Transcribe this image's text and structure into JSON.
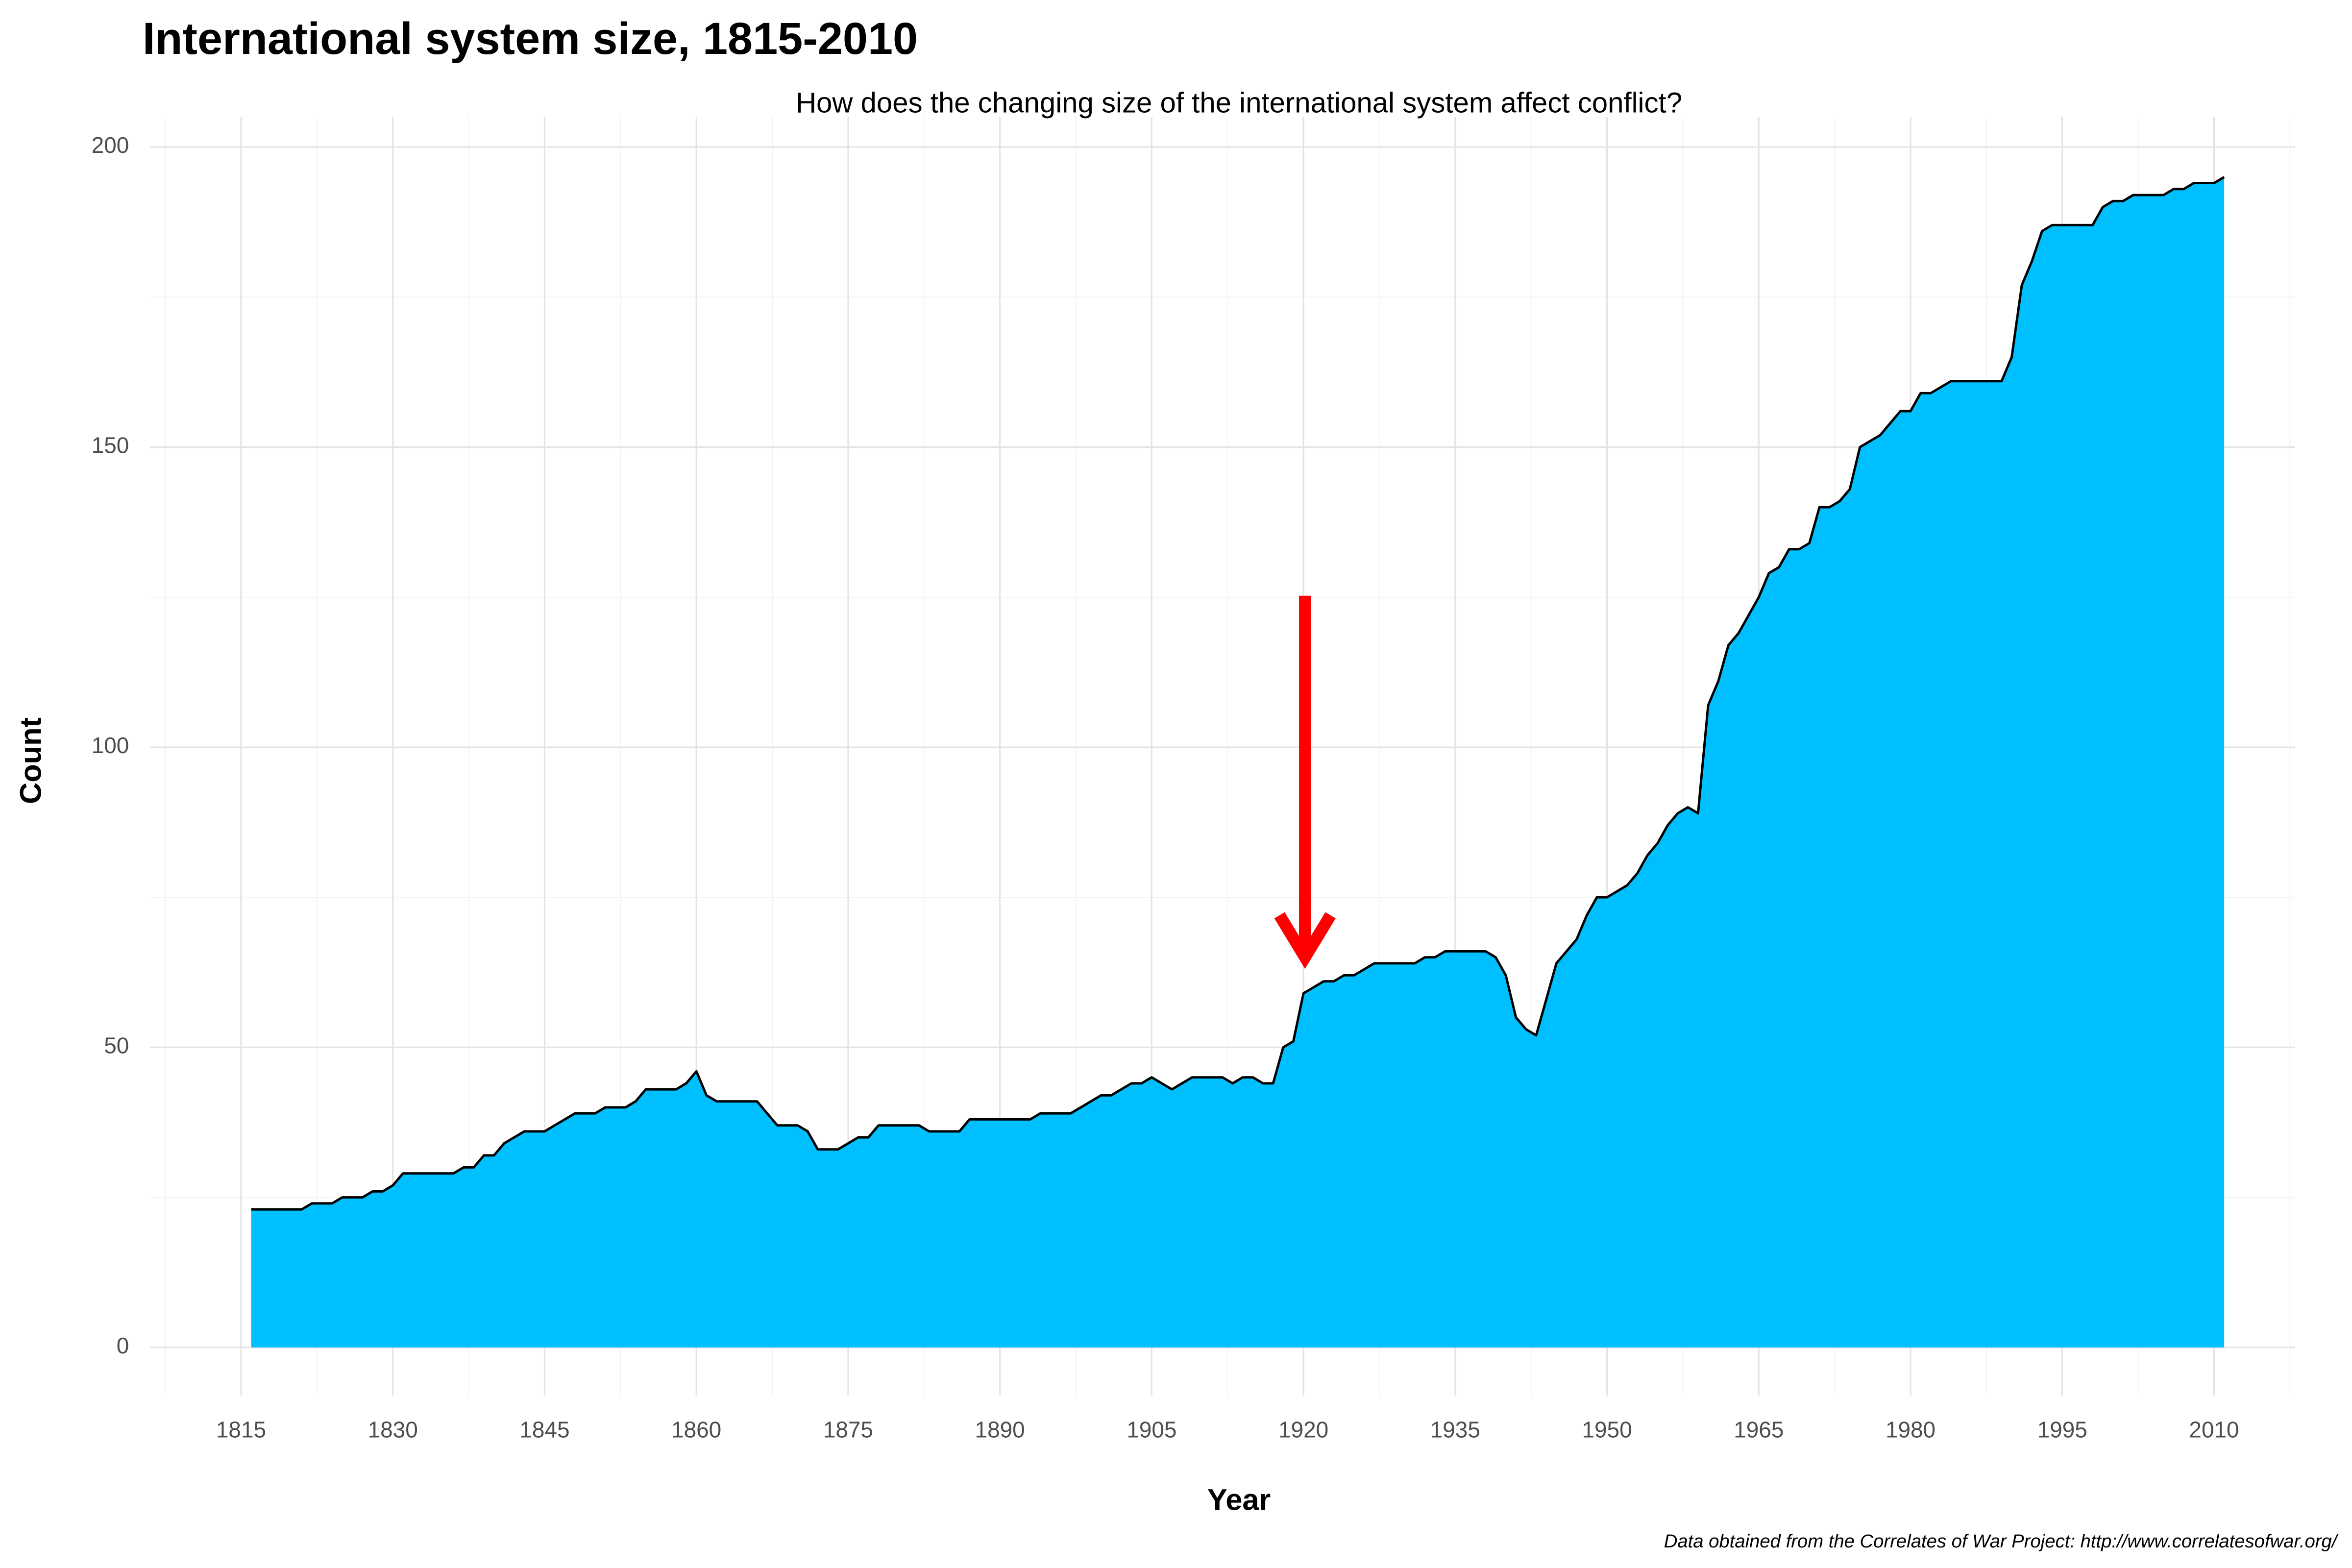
{
  "chart_data": {
    "type": "area",
    "title": "International system size, 1815-2010",
    "subtitle": "How does the changing size of the international system affect conflict?",
    "xlabel": "Year",
    "ylabel": "Count",
    "caption": "Data obtained from the Correlates of War Project: http://www.correlatesofwar.org/",
    "color": "#00bfff",
    "line_color": "#000000",
    "grid": true,
    "x": [
      1816,
      1817,
      1818,
      1819,
      1820,
      1821,
      1822,
      1823,
      1824,
      1825,
      1826,
      1827,
      1828,
      1829,
      1830,
      1831,
      1832,
      1833,
      1834,
      1835,
      1836,
      1837,
      1838,
      1839,
      1840,
      1841,
      1842,
      1843,
      1844,
      1845,
      1846,
      1847,
      1848,
      1849,
      1850,
      1851,
      1852,
      1853,
      1854,
      1855,
      1856,
      1857,
      1858,
      1859,
      1860,
      1861,
      1862,
      1863,
      1864,
      1865,
      1866,
      1867,
      1868,
      1869,
      1870,
      1871,
      1872,
      1873,
      1874,
      1875,
      1876,
      1877,
      1878,
      1879,
      1880,
      1881,
      1882,
      1883,
      1884,
      1885,
      1886,
      1887,
      1888,
      1889,
      1890,
      1891,
      1892,
      1893,
      1894,
      1895,
      1896,
      1897,
      1898,
      1899,
      1900,
      1901,
      1902,
      1903,
      1904,
      1905,
      1906,
      1907,
      1908,
      1909,
      1910,
      1911,
      1912,
      1913,
      1914,
      1915,
      1916,
      1917,
      1918,
      1919,
      1920,
      1921,
      1922,
      1923,
      1924,
      1925,
      1926,
      1927,
      1928,
      1929,
      1930,
      1931,
      1932,
      1933,
      1934,
      1935,
      1936,
      1937,
      1938,
      1939,
      1940,
      1941,
      1942,
      1943,
      1944,
      1945,
      1946,
      1947,
      1948,
      1949,
      1950,
      1951,
      1952,
      1953,
      1954,
      1955,
      1956,
      1957,
      1958,
      1959,
      1960,
      1961,
      1962,
      1963,
      1964,
      1965,
      1966,
      1967,
      1968,
      1969,
      1970,
      1971,
      1972,
      1973,
      1974,
      1975,
      1976,
      1977,
      1978,
      1979,
      1980,
      1981,
      1982,
      1983,
      1984,
      1985,
      1986,
      1987,
      1988,
      1989,
      1990,
      1991,
      1992,
      1993,
      1994,
      1995,
      1996,
      1997,
      1998,
      1999,
      2000,
      2001,
      2002,
      2003,
      2004,
      2005,
      2006,
      2007,
      2008,
      2009,
      2010,
      2011
    ],
    "values": [
      23,
      23,
      23,
      23,
      23,
      23,
      24,
      24,
      24,
      25,
      25,
      25,
      26,
      26,
      27,
      29,
      29,
      29,
      29,
      29,
      29,
      30,
      30,
      32,
      32,
      34,
      35,
      36,
      36,
      36,
      37,
      38,
      39,
      39,
      39,
      40,
      40,
      40,
      41,
      43,
      43,
      43,
      43,
      44,
      46,
      42,
      41,
      41,
      41,
      41,
      41,
      39,
      37,
      37,
      37,
      36,
      33,
      33,
      33,
      34,
      35,
      35,
      37,
      37,
      37,
      37,
      37,
      36,
      36,
      36,
      36,
      38,
      38,
      38,
      38,
      38,
      38,
      38,
      39,
      39,
      39,
      39,
      40,
      41,
      42,
      42,
      43,
      44,
      44,
      45,
      44,
      43,
      44,
      45,
      45,
      45,
      45,
      44,
      45,
      45,
      44,
      44,
      50,
      51,
      59,
      60,
      61,
      61,
      62,
      62,
      63,
      64,
      64,
      64,
      64,
      64,
      65,
      65,
      66,
      66,
      66,
      66,
      66,
      65,
      62,
      55,
      53,
      52,
      58,
      64,
      66,
      68,
      72,
      75,
      75,
      76,
      77,
      79,
      82,
      84,
      87,
      89,
      90,
      89,
      107,
      111,
      117,
      119,
      122,
      125,
      129,
      130,
      133,
      133,
      134,
      140,
      140,
      141,
      143,
      150,
      151,
      152,
      154,
      156,
      156,
      159,
      159,
      160,
      161,
      161,
      161,
      161,
      161,
      161,
      165,
      177,
      181,
      186,
      187,
      187,
      187,
      187,
      187,
      190,
      191,
      191,
      192,
      192,
      192,
      192,
      193,
      193,
      194,
      194,
      194,
      195
    ],
    "xlim": [
      1806,
      2018
    ],
    "xticks": [
      1815,
      1830,
      1845,
      1860,
      1875,
      1890,
      1905,
      1920,
      1935,
      1950,
      1965,
      1980,
      1995,
      2010
    ],
    "ylim": [
      -8,
      205
    ],
    "yticks": [
      0,
      50,
      100,
      150,
      200
    ]
  }
}
